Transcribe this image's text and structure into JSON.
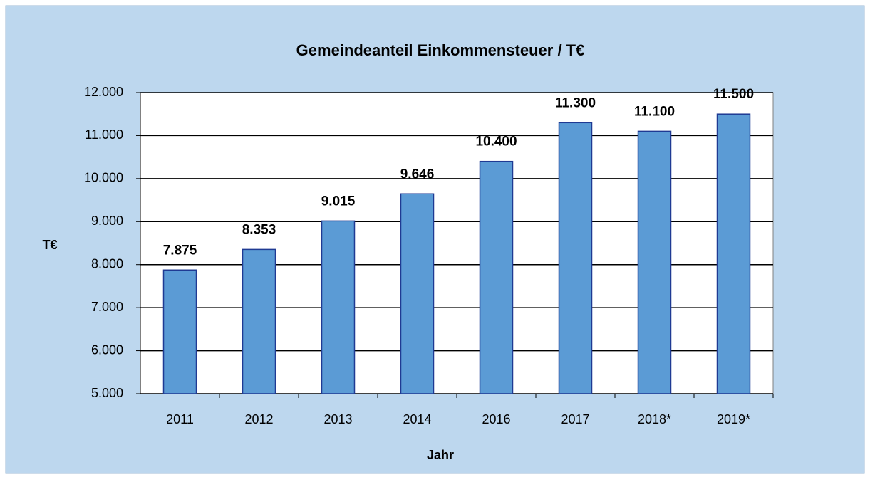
{
  "chart_data": {
    "type": "bar",
    "title": "Gemeindeanteil Einkommensteuer / T€",
    "x_label": "Jahr",
    "y_label": "T€",
    "categories": [
      "2011",
      "2012",
      "2013",
      "2014",
      "2016",
      "2017",
      "2018*",
      "2019*"
    ],
    "values": [
      7875,
      8353,
      9015,
      9646,
      10400,
      11300,
      11100,
      11500
    ],
    "value_labels": [
      "7.875",
      "8.353",
      "9.015",
      "9.646",
      "10.400",
      "11.300",
      "11.100",
      "11.500"
    ],
    "color": "#5b9bd5",
    "ylim": [
      5000,
      12000
    ],
    "yticks": [
      {
        "value": 5000,
        "label": "5.000"
      },
      {
        "value": 6000,
        "label": "6.000"
      },
      {
        "value": 7000,
        "label": "7.000"
      },
      {
        "value": 8000,
        "label": "8.000"
      },
      {
        "value": 9000,
        "label": "9.000"
      },
      {
        "value": 10000,
        "label": "10.000"
      },
      {
        "value": 11000,
        "label": "11.000"
      },
      {
        "value": 12000,
        "label": "12.000"
      }
    ],
    "grid": true
  }
}
